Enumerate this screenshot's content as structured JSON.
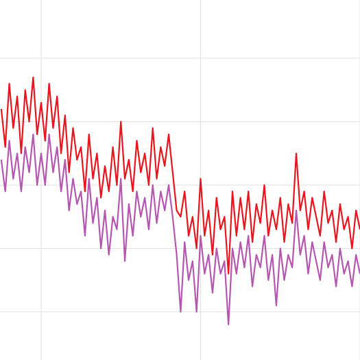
{
  "chart_data": {
    "type": "line",
    "x": [
      0.75,
      0.775,
      0.8,
      0.825,
      0.85,
      0.875,
      0.9,
      0.925,
      0.95,
      0.975,
      1.0,
      1.025,
      1.05,
      1.075,
      1.1,
      1.125,
      1.15,
      1.175,
      1.2,
      1.225,
      1.25,
      1.275,
      1.3,
      1.325,
      1.35,
      1.375,
      1.4,
      1.425,
      1.45,
      1.475,
      1.5,
      1.525,
      1.55,
      1.575,
      1.6,
      1.625,
      1.65,
      1.675,
      1.7,
      1.725,
      1.75,
      1.775,
      1.8,
      1.825,
      1.85,
      1.875,
      1.9,
      1.925,
      1.95,
      1.975,
      2.0,
      2.025,
      2.05,
      2.075,
      2.1,
      2.125,
      2.15,
      2.175,
      2.2,
      2.225,
      2.25,
      2.275,
      2.3,
      2.325,
      2.35,
      2.375,
      2.4,
      2.425,
      2.45,
      2.475,
      2.5,
      2.525,
      2.55,
      2.575,
      2.6,
      2.625,
      2.65,
      2.675,
      2.7,
      2.725,
      2.75,
      2.775,
      2.8,
      2.825,
      2.85,
      2.875,
      2.9,
      2.925,
      2.95,
      2.975,
      3.0
    ],
    "series": [
      {
        "color": "#b556b0",
        "values": [
          3.4,
          2.9,
          3.7,
          3.1,
          3.5,
          2.9,
          3.6,
          3.2,
          3.8,
          3.0,
          3.5,
          3.0,
          3.8,
          3.2,
          3.6,
          2.9,
          3.4,
          2.6,
          3.1,
          2.7,
          2.9,
          2.2,
          3.1,
          2.4,
          2.8,
          2.0,
          2.6,
          1.9,
          2.5,
          2.3,
          3.1,
          1.8,
          2.7,
          2.2,
          2.9,
          2.5,
          2.8,
          2.3,
          3.0,
          2.4,
          2.9,
          2.6,
          3.0,
          2.5,
          1.9,
          1.0,
          2.1,
          1.5,
          1.8,
          1.0,
          2.2,
          1.6,
          1.9,
          1.3,
          2.0,
          1.6,
          1.8,
          0.8,
          2.0,
          1.6,
          2.1,
          1.7,
          2.2,
          1.4,
          1.9,
          1.7,
          2.2,
          1.5,
          1.9,
          1.1,
          2.0,
          1.5,
          1.9,
          1.7,
          2.6,
          1.9,
          2.2,
          1.6,
          2.1,
          1.8,
          1.5,
          2.1,
          1.7,
          1.9,
          1.4,
          2.0,
          1.6,
          1.8,
          1.4,
          1.9,
          1.6
        ]
      },
      {
        "color": "#e8141e",
        "values": [
          4.2,
          3.6,
          4.6,
          3.9,
          4.4,
          3.5,
          4.5,
          4.0,
          4.7,
          3.8,
          4.3,
          3.7,
          4.6,
          3.9,
          4.4,
          3.5,
          4.1,
          3.2,
          3.9,
          3.4,
          3.6,
          2.9,
          3.8,
          3.1,
          3.5,
          2.8,
          3.3,
          2.9,
          3.6,
          3.0,
          4.0,
          3.1,
          3.4,
          2.9,
          3.7,
          3.2,
          3.5,
          3.0,
          3.9,
          3.1,
          3.6,
          3.3,
          3.8,
          3.2,
          2.6,
          2.5,
          2.9,
          2.2,
          2.5,
          2.0,
          3.1,
          2.2,
          2.6,
          1.9,
          2.8,
          2.3,
          2.5,
          1.6,
          2.9,
          2.2,
          2.8,
          2.3,
          2.9,
          2.1,
          2.7,
          2.4,
          3.0,
          2.2,
          2.6,
          2.3,
          2.8,
          2.1,
          2.7,
          2.4,
          3.5,
          2.6,
          2.9,
          2.3,
          2.8,
          2.5,
          2.2,
          2.9,
          2.4,
          2.6,
          2.1,
          2.7,
          2.3,
          2.5,
          2.0,
          2.6,
          2.3
        ]
      }
    ],
    "xlim": [
      0.742,
      3.0
    ],
    "xticks": [
      1,
      2,
      3
    ],
    "ylim": [
      0.24,
      5.92
    ],
    "yticks": [
      1,
      2,
      3,
      4,
      5
    ],
    "grid": true
  }
}
